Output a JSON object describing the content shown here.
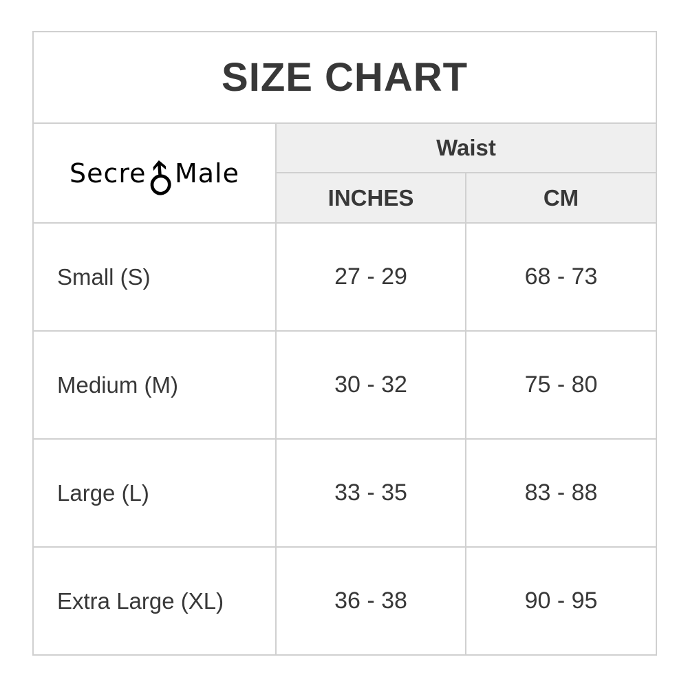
{
  "logo": {
    "text_part1": "Secre",
    "symbol_char": "♂",
    "symbol_name": "male-symbol",
    "text_part2": "Male"
  },
  "colors": {
    "header_background": "#efefef",
    "border": "#d0d0d0",
    "text": "#383838",
    "title_text": "#333333",
    "logo_text": "#000000"
  },
  "chart_data": {
    "type": "table",
    "title": "SIZE CHART",
    "group_header": "Waist",
    "columns": [
      "",
      "INCHES",
      "CM"
    ],
    "rows": [
      [
        "Small (S)",
        "27 - 29",
        "68 - 73"
      ],
      [
        "Medium (M)",
        "30 - 32",
        "75 - 80"
      ],
      [
        "Large (L)",
        "33 - 35",
        "83 - 88"
      ],
      [
        "Extra Large (XL)",
        "36 - 38",
        "90 - 95"
      ]
    ],
    "layout_hints": {
      "title_row_spans_all_columns": true,
      "logo_cell_spans_header_rows": true,
      "group_header_spans_value_columns": true,
      "header_background": "#efefef",
      "grid": true
    }
  }
}
